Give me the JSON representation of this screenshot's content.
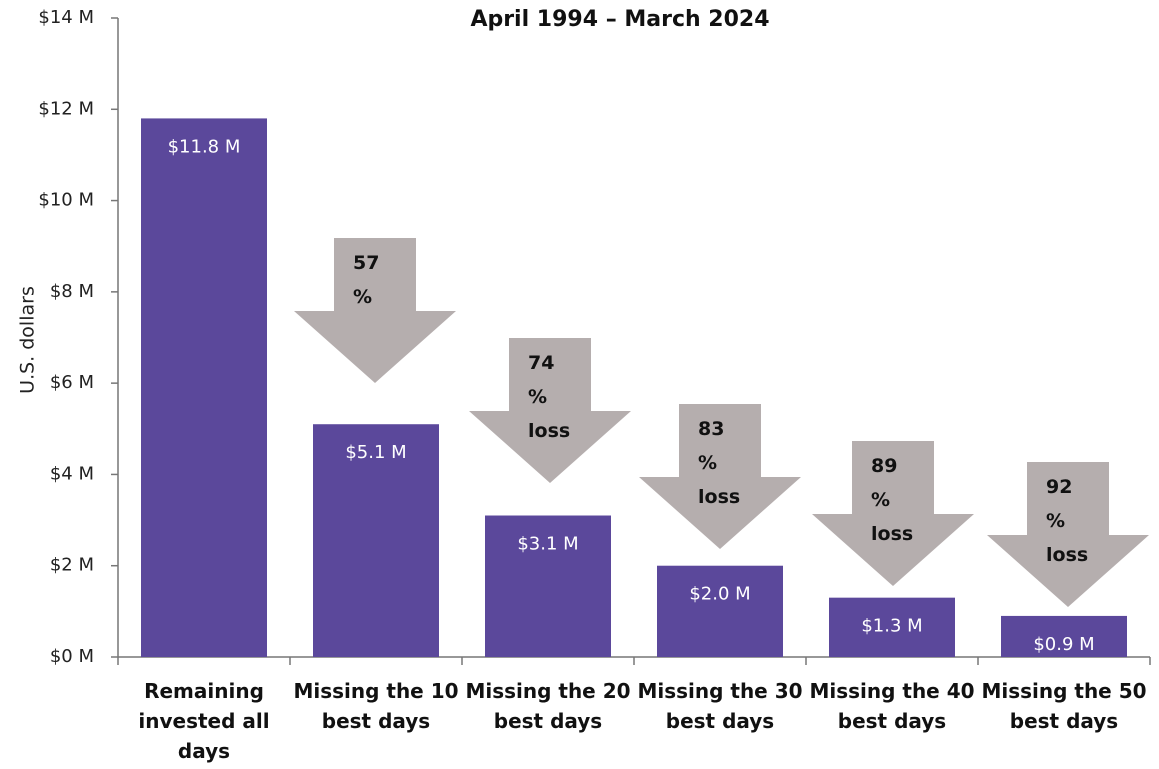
{
  "chart_data": {
    "type": "bar",
    "title": "April 1994 – March 2024",
    "ylabel": "U.S. dollars",
    "categories": [
      "Remaining invested all days",
      "Missing the 10 best days",
      "Missing the 20 best days",
      "Missing the 30 best days",
      "Missing the 40 best days",
      "Missing the 50 best days"
    ],
    "values": [
      11.8,
      5.1,
      3.1,
      2.0,
      1.3,
      0.9
    ],
    "value_labels": [
      "$11.8 M",
      "$5.1 M",
      "$3.1 M",
      "$2.0 M",
      "$1.3 M",
      "$0.9 M"
    ],
    "color": "#5b489b",
    "ylim": [
      0,
      14
    ],
    "yticks": [
      {
        "value": 0,
        "label": "$0 M"
      },
      {
        "value": 2,
        "label": "$2 M"
      },
      {
        "value": 4,
        "label": "$4 M"
      },
      {
        "value": 6,
        "label": "$6 M"
      },
      {
        "value": 8,
        "label": "$8 M"
      },
      {
        "value": 10,
        "label": "$10 M"
      },
      {
        "value": 12,
        "label": "$12 M"
      },
      {
        "value": 14,
        "label": "$14 M"
      }
    ],
    "annotations": [
      "57 %",
      "74 % loss",
      "83 % loss",
      "89 % loss",
      "92 % loss"
    ],
    "annotation_color": "#b5aeae"
  }
}
